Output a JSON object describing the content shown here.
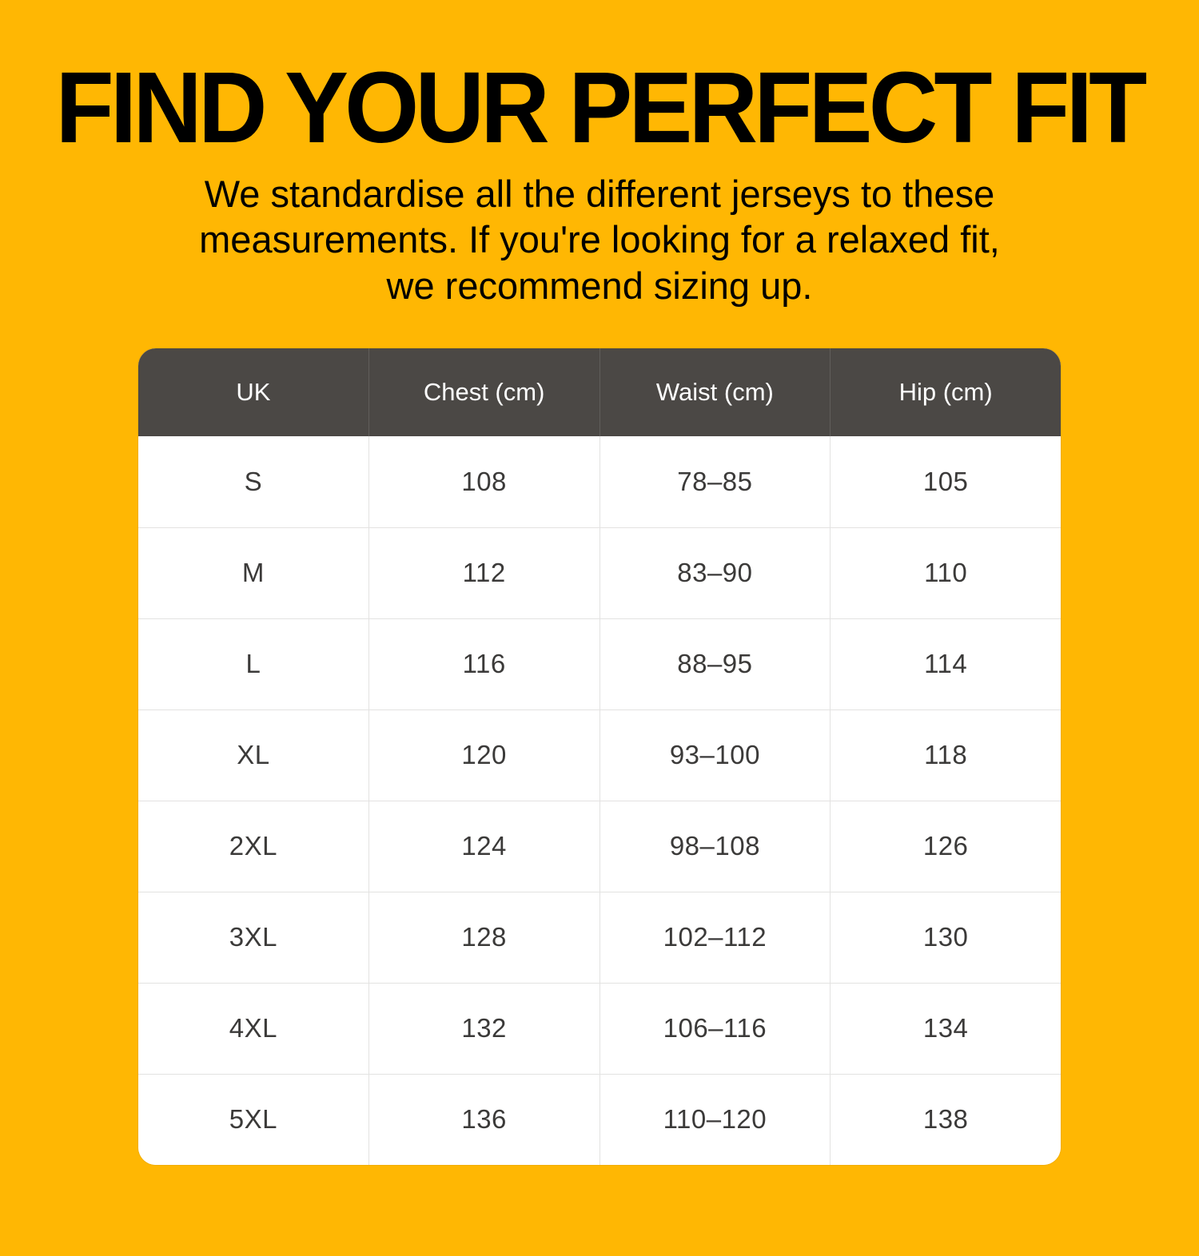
{
  "page_title": "FIND YOUR PERFECT FIT",
  "subtitle_lines": [
    "We standardise all the different jerseys to these",
    "measurements. If you're looking for a relaxed fit,",
    "we recommend sizing up."
  ],
  "colors": {
    "background": "#FFB703",
    "title_text": "#000000",
    "subtitle_text": "#000000",
    "table_header_bg": "#4B4845",
    "table_header_text": "#FFFFFF",
    "table_body_bg": "#FFFFFF",
    "table_body_text": "#3B3A39",
    "table_divider": "#E3E2E1"
  },
  "chart_data": {
    "type": "table",
    "title": "FIND YOUR PERFECT FIT",
    "columns": [
      "UK",
      "Chest (cm)",
      "Waist (cm)",
      "Hip (cm)"
    ],
    "rows": [
      [
        "S",
        "108",
        "78–85",
        "105"
      ],
      [
        "M",
        "112",
        "83–90",
        "110"
      ],
      [
        "L",
        "116",
        "88–95",
        "114"
      ],
      [
        "XL",
        "120",
        "93–100",
        "118"
      ],
      [
        "2XL",
        "124",
        "98–108",
        "126"
      ],
      [
        "3XL",
        "128",
        "102–112",
        "130"
      ],
      [
        "4XL",
        "132",
        "106–116",
        "134"
      ],
      [
        "5XL",
        "136",
        "110–120",
        "138"
      ]
    ]
  }
}
